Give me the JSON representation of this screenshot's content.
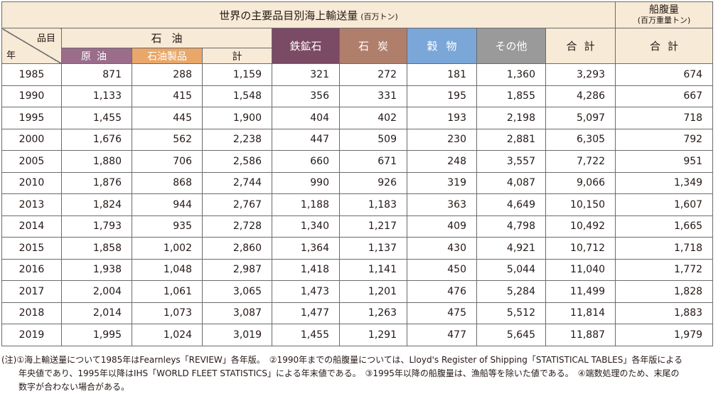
{
  "header": {
    "title": "世界の主要品目別海上輸送量",
    "title_unit": "(百万トン)",
    "ship_title": "船腹量",
    "ship_unit": "(百万重量トン)",
    "corner_item": "品目",
    "corner_year": "年",
    "oil_group": "石油",
    "crude": "原油",
    "products": "石油製品",
    "oil_total": "計",
    "iron_ore": "鉄鉱石",
    "coal": "石炭",
    "grain": "穀物",
    "other": "その他",
    "grand_total": "合計",
    "ship_total": "合計"
  },
  "rows": [
    [
      "1985",
      "871",
      "288",
      "1,159",
      "321",
      "272",
      "181",
      "1,360",
      "3,293",
      "674"
    ],
    [
      "1990",
      "1,133",
      "415",
      "1,548",
      "356",
      "331",
      "195",
      "1,855",
      "4,286",
      "667"
    ],
    [
      "1995",
      "1,455",
      "445",
      "1,900",
      "404",
      "402",
      "193",
      "2,198",
      "5,097",
      "718"
    ],
    [
      "2000",
      "1,676",
      "562",
      "2,238",
      "447",
      "509",
      "230",
      "2,881",
      "6,305",
      "792"
    ],
    [
      "2005",
      "1,880",
      "706",
      "2,586",
      "660",
      "671",
      "248",
      "3,557",
      "7,722",
      "951"
    ],
    [
      "2010",
      "1,876",
      "868",
      "2,744",
      "990",
      "926",
      "319",
      "4,087",
      "9,066",
      "1,349"
    ],
    [
      "2013",
      "1,824",
      "944",
      "2,767",
      "1,188",
      "1,183",
      "363",
      "4,649",
      "10,150",
      "1,607"
    ],
    [
      "2014",
      "1,793",
      "935",
      "2,728",
      "1,340",
      "1,217",
      "409",
      "4,798",
      "10,492",
      "1,665"
    ],
    [
      "2015",
      "1,858",
      "1,002",
      "2,860",
      "1,364",
      "1,137",
      "430",
      "4,921",
      "10,712",
      "1,718"
    ],
    [
      "2016",
      "1,938",
      "1,048",
      "2,987",
      "1,418",
      "1,141",
      "450",
      "5,044",
      "11,040",
      "1,772"
    ],
    [
      "2017",
      "2,004",
      "1,061",
      "3,065",
      "1,473",
      "1,201",
      "476",
      "5,284",
      "11,499",
      "1,828"
    ],
    [
      "2018",
      "2,014",
      "1,073",
      "3,087",
      "1,477",
      "1,263",
      "475",
      "5,512",
      "11,814",
      "1,883"
    ],
    [
      "2019",
      "1,995",
      "1,024",
      "3,019",
      "1,455",
      "1,291",
      "477",
      "5,645",
      "11,887",
      "1,979"
    ]
  ],
  "notes": {
    "line1": "(注)①海上輸送量について1985年はFearnleys「REVIEW」各年版。　②1990年までの船腹量については、Lloyd's Register of Shipping「STATISTICAL TABLES」各年版による",
    "line2": "　　年央値であり、1995年以降はIHS「WORLD FLEET STATISTICS」による年末値である。　③1995年以降の船腹量は、漁船等を除いた値である。　④端数処理のため、末尾の",
    "line3": "　　数字が合わない場合がある。"
  },
  "colors": {
    "header_bg": "#f7ead6",
    "crude": "#9b6d8b",
    "products": "#e9a769",
    "iron_ore": "#7b4a64",
    "coal": "#b07f6c",
    "grain": "#7aa6d8",
    "other": "#9a9a9a"
  }
}
